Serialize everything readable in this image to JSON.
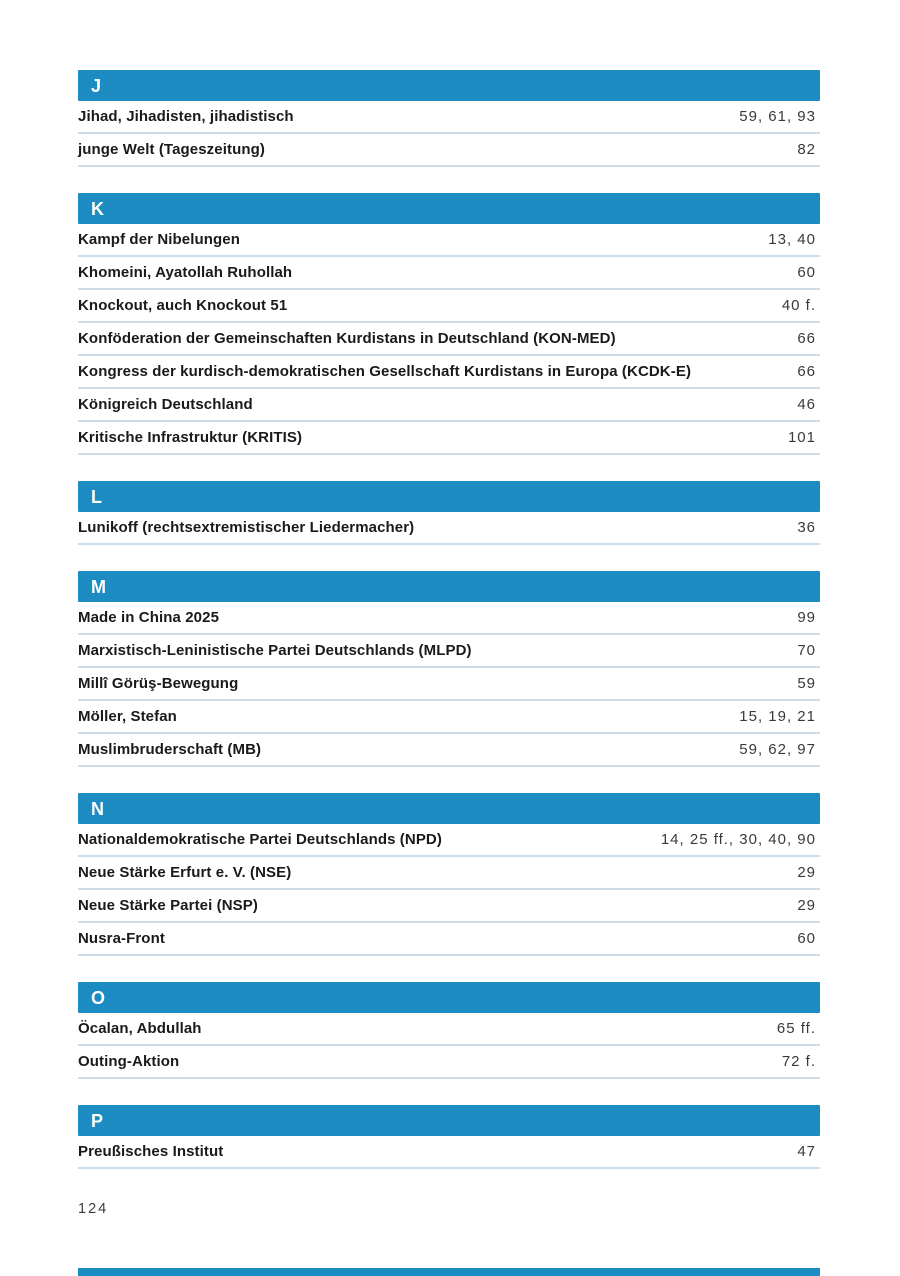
{
  "page": {
    "footer_page_number": "124"
  },
  "colors": {
    "section_header_bg": "#1c8cc2",
    "section_header_text": "#ffffff",
    "row_divider": "#ccdde8",
    "term_text": "#1a1a1a",
    "pages_text": "#3a3a3a"
  },
  "index": {
    "sections": [
      {
        "letter": "J",
        "entries": [
          {
            "term": "Jihad, Jihadisten, jihadistisch",
            "pages": "59, 61, 93"
          },
          {
            "term": "junge Welt (Tageszeitung)",
            "pages": "82"
          }
        ]
      },
      {
        "letter": "K",
        "entries": [
          {
            "term": "Kampf der Nibelungen",
            "pages": "13, 40"
          },
          {
            "term": "Khomeini, Ayatollah Ruhollah",
            "pages": "60"
          },
          {
            "term": "Knockout, auch Knockout 51",
            "pages": "40 f."
          },
          {
            "term": "Konföderation der Gemeinschaften Kurdistans in Deutschland (KON-MED)",
            "pages": "66"
          },
          {
            "term": "Kongress der kurdisch-demokratischen Gesellschaft Kurdistans in Europa (KCDK-E)",
            "pages": "66"
          },
          {
            "term": "Königreich Deutschland",
            "pages": "46"
          },
          {
            "term": "Kritische Infrastruktur (KRITIS)",
            "pages": "101"
          }
        ]
      },
      {
        "letter": "L",
        "entries": [
          {
            "term": "Lunikoff (rechtsextremistischer Liedermacher)",
            "pages": "36"
          }
        ]
      },
      {
        "letter": "M",
        "entries": [
          {
            "term": "Made in China 2025",
            "pages": "99"
          },
          {
            "term": "Marxistisch-Leninistische Partei Deutschlands (MLPD)",
            "pages": "70"
          },
          {
            "term": "Millî Görüş-Bewegung",
            "pages": "59"
          },
          {
            "term": "Möller, Stefan",
            "pages": "15, 19, 21"
          },
          {
            "term": "Muslimbruderschaft (MB)",
            "pages": "59, 62, 97"
          }
        ]
      },
      {
        "letter": "N",
        "entries": [
          {
            "term": "Nationaldemokratische Partei Deutschlands (NPD)",
            "pages": "14, 25 ff., 30, 40, 90"
          },
          {
            "term": "Neue Stärke Erfurt e. V. (NSE)",
            "pages": "29"
          },
          {
            "term": "Neue Stärke Partei (NSP)",
            "pages": "29"
          },
          {
            "term": "Nusra-Front",
            "pages": "60"
          }
        ]
      },
      {
        "letter": "O",
        "entries": [
          {
            "term": "Öcalan, Abdullah",
            "pages": "65 ff."
          },
          {
            "term": "Outing-Aktion",
            "pages": "72 f."
          }
        ]
      },
      {
        "letter": "P",
        "entries": [
          {
            "term": "Preußisches Institut",
            "pages": "47"
          }
        ]
      }
    ]
  }
}
